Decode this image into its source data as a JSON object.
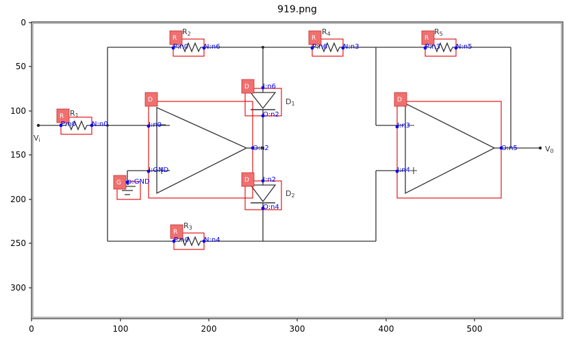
{
  "title": "919.png",
  "axes": {
    "x_ticks": [
      "0",
      "100",
      "200",
      "300",
      "400",
      "500"
    ],
    "y_ticks": [
      "0",
      "50",
      "100",
      "150",
      "200",
      "250",
      "300"
    ]
  },
  "labels": {
    "vi": "V",
    "vi_sub": "i",
    "vo": "V",
    "vo_sub": "0"
  },
  "components": [
    {
      "id": "R1",
      "tag": "R",
      "name": "R",
      "sub": "1"
    },
    {
      "id": "R2",
      "tag": "R",
      "name": "R",
      "sub": "2"
    },
    {
      "id": "R3",
      "tag": "R",
      "name": "R",
      "sub": "3"
    },
    {
      "id": "R4",
      "tag": "R",
      "name": "R",
      "sub": "4"
    },
    {
      "id": "R5",
      "tag": "R",
      "name": "R",
      "sub": "5"
    },
    {
      "id": "D1",
      "tag": "D",
      "name": "D",
      "sub": "1"
    },
    {
      "id": "D2",
      "tag": "D",
      "name": "D",
      "sub": "2"
    },
    {
      "id": "OA1",
      "tag": "D"
    },
    {
      "id": "OA2",
      "tag": "D"
    },
    {
      "id": "GND",
      "tag": "G"
    }
  ],
  "pins": {
    "r1_p": "P:n0",
    "r1_n": "N:n0",
    "r2_p": "P:n0",
    "r2_n": "N:n6",
    "r3_p": "P:n0",
    "r3_n": "N:n4",
    "r4_p": "P:n6",
    "r4_n": "N:n3",
    "r5_p": "P:n3",
    "r5_n": "N:n5",
    "d1_i": "I:n6",
    "d1_o": "O:n2",
    "d2_i": "I:n2",
    "d2_o": "O:n4",
    "oa1_i": "I:n0",
    "oa1_gnd": "I:GND",
    "oa1_o": "O:n2",
    "oa2_i": "I:n3",
    "oa2_n4": "I:n4",
    "oa2_o": "O:n5",
    "gnd": "p:GND"
  }
}
